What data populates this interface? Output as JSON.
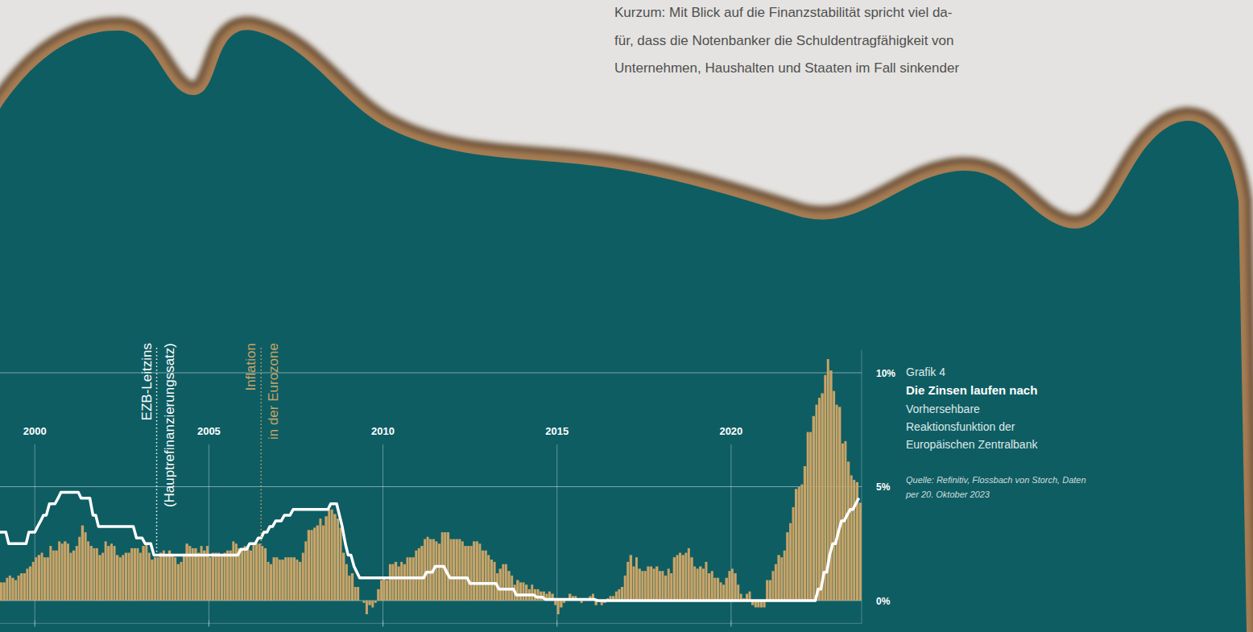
{
  "text": {
    "lines": [
      "Kurzum: Mit Blick auf die Finanzstabilität spricht viel da-",
      "für, dass die Notenbanker die Schuldentragfähigkeit von",
      "Unternehmen, Haushalten und Staaten im Fall sinkender"
    ]
  },
  "chart_data": {
    "type": "bar",
    "figure_label": "Grafik 4",
    "title": "Die Zinsen laufen nach",
    "subtitle": "Vorhersehbare Reaktionsfunktion der Europäischen Zentralbank",
    "source": "Quelle: Refinitiv, Flossbach von Storch, Daten per 20. Oktober 2023",
    "grid": true,
    "xlim": [
      1999,
      2023.75
    ],
    "xticks": [
      2000,
      2005,
      2010,
      2015,
      2020
    ],
    "ylim": [
      -1,
      11
    ],
    "yticks": [
      {
        "value": 0,
        "label": "0%"
      },
      {
        "value": 5,
        "label": "5%"
      },
      {
        "value": 10,
        "label": "10%"
      }
    ],
    "x": [
      1999,
      1999.08,
      1999.17,
      1999.25,
      1999.33,
      1999.42,
      1999.5,
      1999.58,
      1999.67,
      1999.75,
      1999.83,
      1999.92,
      2000,
      2000.08,
      2000.17,
      2000.25,
      2000.33,
      2000.42,
      2000.5,
      2000.58,
      2000.67,
      2000.75,
      2000.83,
      2000.92,
      2001,
      2001.08,
      2001.17,
      2001.25,
      2001.33,
      2001.42,
      2001.5,
      2001.58,
      2001.67,
      2001.75,
      2001.83,
      2001.92,
      2002,
      2002.08,
      2002.17,
      2002.25,
      2002.33,
      2002.42,
      2002.5,
      2002.58,
      2002.67,
      2002.75,
      2002.83,
      2002.92,
      2003,
      2003.08,
      2003.17,
      2003.25,
      2003.33,
      2003.42,
      2003.5,
      2003.58,
      2003.67,
      2003.75,
      2003.83,
      2003.92,
      2004,
      2004.08,
      2004.17,
      2004.25,
      2004.33,
      2004.42,
      2004.5,
      2004.58,
      2004.67,
      2004.75,
      2004.83,
      2004.92,
      2005,
      2005.08,
      2005.17,
      2005.25,
      2005.33,
      2005.42,
      2005.5,
      2005.58,
      2005.67,
      2005.75,
      2005.83,
      2005.92,
      2006,
      2006.08,
      2006.17,
      2006.25,
      2006.33,
      2006.42,
      2006.5,
      2006.58,
      2006.67,
      2006.75,
      2006.83,
      2006.92,
      2007,
      2007.08,
      2007.17,
      2007.25,
      2007.33,
      2007.42,
      2007.5,
      2007.58,
      2007.67,
      2007.75,
      2007.83,
      2007.92,
      2008,
      2008.08,
      2008.17,
      2008.25,
      2008.33,
      2008.42,
      2008.5,
      2008.58,
      2008.67,
      2008.75,
      2008.83,
      2008.92,
      2009,
      2009.08,
      2009.17,
      2009.25,
      2009.33,
      2009.42,
      2009.5,
      2009.58,
      2009.67,
      2009.75,
      2009.83,
      2009.92,
      2010,
      2010.08,
      2010.17,
      2010.25,
      2010.33,
      2010.42,
      2010.5,
      2010.58,
      2010.67,
      2010.75,
      2010.83,
      2010.92,
      2011,
      2011.08,
      2011.17,
      2011.25,
      2011.33,
      2011.42,
      2011.5,
      2011.58,
      2011.67,
      2011.75,
      2011.83,
      2011.92,
      2012,
      2012.08,
      2012.17,
      2012.25,
      2012.33,
      2012.42,
      2012.5,
      2012.58,
      2012.67,
      2012.75,
      2012.83,
      2012.92,
      2013,
      2013.08,
      2013.17,
      2013.25,
      2013.33,
      2013.42,
      2013.5,
      2013.58,
      2013.67,
      2013.75,
      2013.83,
      2013.92,
      2014,
      2014.08,
      2014.17,
      2014.25,
      2014.33,
      2014.42,
      2014.5,
      2014.58,
      2014.67,
      2014.75,
      2014.83,
      2014.92,
      2015,
      2015.08,
      2015.17,
      2015.25,
      2015.33,
      2015.42,
      2015.5,
      2015.58,
      2015.67,
      2015.75,
      2015.83,
      2015.92,
      2016,
      2016.08,
      2016.17,
      2016.25,
      2016.33,
      2016.42,
      2016.5,
      2016.58,
      2016.67,
      2016.75,
      2016.83,
      2016.92,
      2017,
      2017.08,
      2017.17,
      2017.25,
      2017.33,
      2017.42,
      2017.5,
      2017.58,
      2017.67,
      2017.75,
      2017.83,
      2017.92,
      2018,
      2018.08,
      2018.17,
      2018.25,
      2018.33,
      2018.42,
      2018.5,
      2018.58,
      2018.67,
      2018.75,
      2018.83,
      2018.92,
      2019,
      2019.08,
      2019.17,
      2019.25,
      2019.33,
      2019.42,
      2019.5,
      2019.58,
      2019.67,
      2019.75,
      2019.83,
      2019.92,
      2020,
      2020.08,
      2020.17,
      2020.25,
      2020.33,
      2020.42,
      2020.5,
      2020.58,
      2020.67,
      2020.75,
      2020.83,
      2020.92,
      2021,
      2021.08,
      2021.17,
      2021.25,
      2021.33,
      2021.42,
      2021.5,
      2021.58,
      2021.67,
      2021.75,
      2021.83,
      2021.92,
      2022,
      2022.08,
      2022.17,
      2022.25,
      2022.33,
      2022.42,
      2022.5,
      2022.58,
      2022.67,
      2022.75,
      2022.83,
      2022.92,
      2023,
      2023.08,
      2023.17,
      2023.25,
      2023.33,
      2023.42,
      2023.5,
      2023.58,
      2023.67
    ],
    "series": [
      {
        "name": "Inflation in der Eurozone",
        "type": "bar",
        "color": "#c9a467",
        "label_x": 2006.5,
        "values": [
          0.8,
          0.8,
          1.0,
          1.1,
          1.0,
          0.9,
          1.1,
          1.2,
          1.2,
          1.4,
          1.5,
          1.7,
          1.9,
          2.0,
          2.1,
          1.9,
          1.9,
          2.4,
          2.2,
          2.2,
          2.6,
          2.5,
          2.6,
          2.5,
          2.1,
          2.2,
          2.4,
          2.8,
          3.3,
          3.0,
          2.6,
          2.4,
          2.3,
          2.3,
          2.0,
          2.1,
          2.6,
          2.4,
          2.5,
          2.4,
          2.0,
          1.9,
          2.0,
          2.1,
          2.1,
          2.3,
          2.3,
          2.3,
          2.1,
          2.4,
          2.5,
          2.1,
          1.8,
          1.9,
          1.9,
          2.1,
          2.2,
          2.0,
          2.2,
          2.0,
          1.9,
          1.6,
          1.7,
          2.0,
          2.5,
          2.4,
          2.3,
          2.3,
          2.1,
          2.4,
          2.2,
          2.4,
          1.9,
          2.1,
          2.1,
          2.1,
          2.0,
          2.1,
          2.2,
          2.2,
          2.6,
          2.5,
          2.3,
          2.2,
          2.4,
          2.3,
          2.2,
          2.5,
          2.5,
          2.5,
          2.4,
          2.3,
          1.7,
          1.6,
          1.9,
          1.9,
          1.8,
          1.8,
          1.9,
          1.9,
          1.9,
          1.9,
          1.8,
          1.7,
          2.1,
          2.6,
          3.1,
          3.1,
          3.2,
          3.3,
          3.6,
          3.3,
          3.7,
          4.0,
          4.0,
          3.8,
          3.6,
          3.2,
          2.1,
          1.6,
          1.1,
          1.2,
          0.6,
          0.6,
          0.0,
          -0.1,
          -0.6,
          -0.2,
          -0.3,
          -0.1,
          0.5,
          0.9,
          1.0,
          0.9,
          1.6,
          1.6,
          1.7,
          1.5,
          1.7,
          1.6,
          1.9,
          1.9,
          1.9,
          2.2,
          2.3,
          2.4,
          2.7,
          2.8,
          2.7,
          2.7,
          2.6,
          2.5,
          3.0,
          3.0,
          3.0,
          2.7,
          2.7,
          2.7,
          2.7,
          2.6,
          2.4,
          2.4,
          2.4,
          2.6,
          2.6,
          2.5,
          2.2,
          2.2,
          2.0,
          1.8,
          1.7,
          1.2,
          1.4,
          1.6,
          1.6,
          1.3,
          1.1,
          0.7,
          0.9,
          0.8,
          0.8,
          0.7,
          0.5,
          0.7,
          0.5,
          0.5,
          0.4,
          0.4,
          0.3,
          0.4,
          0.3,
          -0.2,
          -0.6,
          -0.3,
          -0.1,
          0.0,
          0.3,
          0.2,
          0.2,
          0.1,
          -0.1,
          0.1,
          0.1,
          0.2,
          0.3,
          -0.2,
          0.0,
          -0.2,
          -0.1,
          0.1,
          0.2,
          0.2,
          0.4,
          0.5,
          0.6,
          1.1,
          1.7,
          2.0,
          1.5,
          1.9,
          1.4,
          1.3,
          1.3,
          1.5,
          1.5,
          1.4,
          1.5,
          1.3,
          1.3,
          1.1,
          1.4,
          1.2,
          1.9,
          2.0,
          2.1,
          2.0,
          2.1,
          2.3,
          1.9,
          1.5,
          1.4,
          1.5,
          1.4,
          1.7,
          1.2,
          1.3,
          1.0,
          1.0,
          0.8,
          0.7,
          1.0,
          1.3,
          1.4,
          1.2,
          0.7,
          0.3,
          0.1,
          0.3,
          0.4,
          -0.2,
          -0.3,
          -0.3,
          -0.3,
          -0.3,
          0.9,
          0.9,
          1.3,
          1.6,
          2.0,
          1.9,
          2.2,
          3.0,
          3.4,
          4.1,
          4.9,
          5.0,
          5.1,
          5.9,
          7.4,
          7.4,
          8.1,
          8.6,
          8.9,
          9.1,
          9.9,
          10.6,
          10.1,
          9.2,
          8.6,
          8.5,
          6.9,
          7.0,
          6.1,
          5.5,
          5.3,
          5.2,
          4.3
        ]
      },
      {
        "name": "EZB-Leitzins (Hauptrefinanzierungssatz)",
        "type": "line",
        "color": "#ffffff",
        "label_x": 2003.5,
        "line_style": "solid",
        "values": [
          3,
          3,
          3,
          2.5,
          2.5,
          2.5,
          2.5,
          2.5,
          2.5,
          2.5,
          3,
          3,
          3,
          3.25,
          3.5,
          3.75,
          3.75,
          4.25,
          4.25,
          4.25,
          4.5,
          4.75,
          4.75,
          4.75,
          4.75,
          4.75,
          4.75,
          4.75,
          4.5,
          4.5,
          4.5,
          4.5,
          3.75,
          3.75,
          3.25,
          3.25,
          3.25,
          3.25,
          3.25,
          3.25,
          3.25,
          3.25,
          3.25,
          3.25,
          3.25,
          3.25,
          3.25,
          2.75,
          2.75,
          2.75,
          2.5,
          2.5,
          2.5,
          2,
          2,
          2,
          2,
          2,
          2,
          2,
          2,
          2,
          2,
          2,
          2,
          2,
          2,
          2,
          2,
          2,
          2,
          2,
          2,
          2,
          2,
          2,
          2,
          2,
          2,
          2,
          2,
          2,
          2,
          2.25,
          2.25,
          2.25,
          2.5,
          2.5,
          2.5,
          2.75,
          2.75,
          3,
          3,
          3.25,
          3.25,
          3.5,
          3.5,
          3.5,
          3.75,
          3.75,
          3.75,
          4,
          4,
          4,
          4,
          4,
          4,
          4,
          4,
          4,
          4,
          4,
          4,
          4,
          4.25,
          4.25,
          4.25,
          3.75,
          3.25,
          2.5,
          2,
          2,
          1.5,
          1.25,
          1,
          1,
          1,
          1,
          1,
          1,
          1,
          1,
          1,
          1,
          1,
          1,
          1,
          1,
          1,
          1,
          1,
          1,
          1,
          1,
          1,
          1,
          1,
          1.25,
          1.25,
          1.25,
          1.5,
          1.5,
          1.5,
          1.5,
          1.25,
          1,
          1,
          1,
          1,
          1,
          1,
          1,
          0.75,
          0.75,
          0.75,
          0.75,
          0.75,
          0.75,
          0.75,
          0.75,
          0.75,
          0.75,
          0.5,
          0.5,
          0.5,
          0.5,
          0.5,
          0.5,
          0.25,
          0.25,
          0.25,
          0.25,
          0.25,
          0.25,
          0.25,
          0.15,
          0.15,
          0.15,
          0.05,
          0.05,
          0.05,
          0.05,
          0.05,
          0.05,
          0.05,
          0.05,
          0.05,
          0.05,
          0.05,
          0.05,
          0.05,
          0.05,
          0.05,
          0.05,
          0.05,
          0.05,
          0,
          0,
          0,
          0,
          0,
          0,
          0,
          0,
          0,
          0,
          0,
          0,
          0,
          0,
          0,
          0,
          0,
          0,
          0,
          0,
          0,
          0,
          0,
          0,
          0,
          0,
          0,
          0,
          0,
          0,
          0,
          0,
          0,
          0,
          0,
          0,
          0,
          0,
          0,
          0,
          0,
          0,
          0,
          0,
          0,
          0,
          0,
          0,
          0,
          0,
          0,
          0,
          0,
          0,
          0,
          0,
          0,
          0,
          0,
          0,
          0,
          0,
          0,
          0,
          0,
          0,
          0,
          0,
          0,
          0,
          0,
          0,
          0,
          0,
          0,
          0,
          0.5,
          0.5,
          1.25,
          1.25,
          2,
          2.5,
          2.5,
          3,
          3.5,
          3.5,
          3.75,
          4,
          4,
          4.25,
          4.5
        ]
      }
    ]
  }
}
